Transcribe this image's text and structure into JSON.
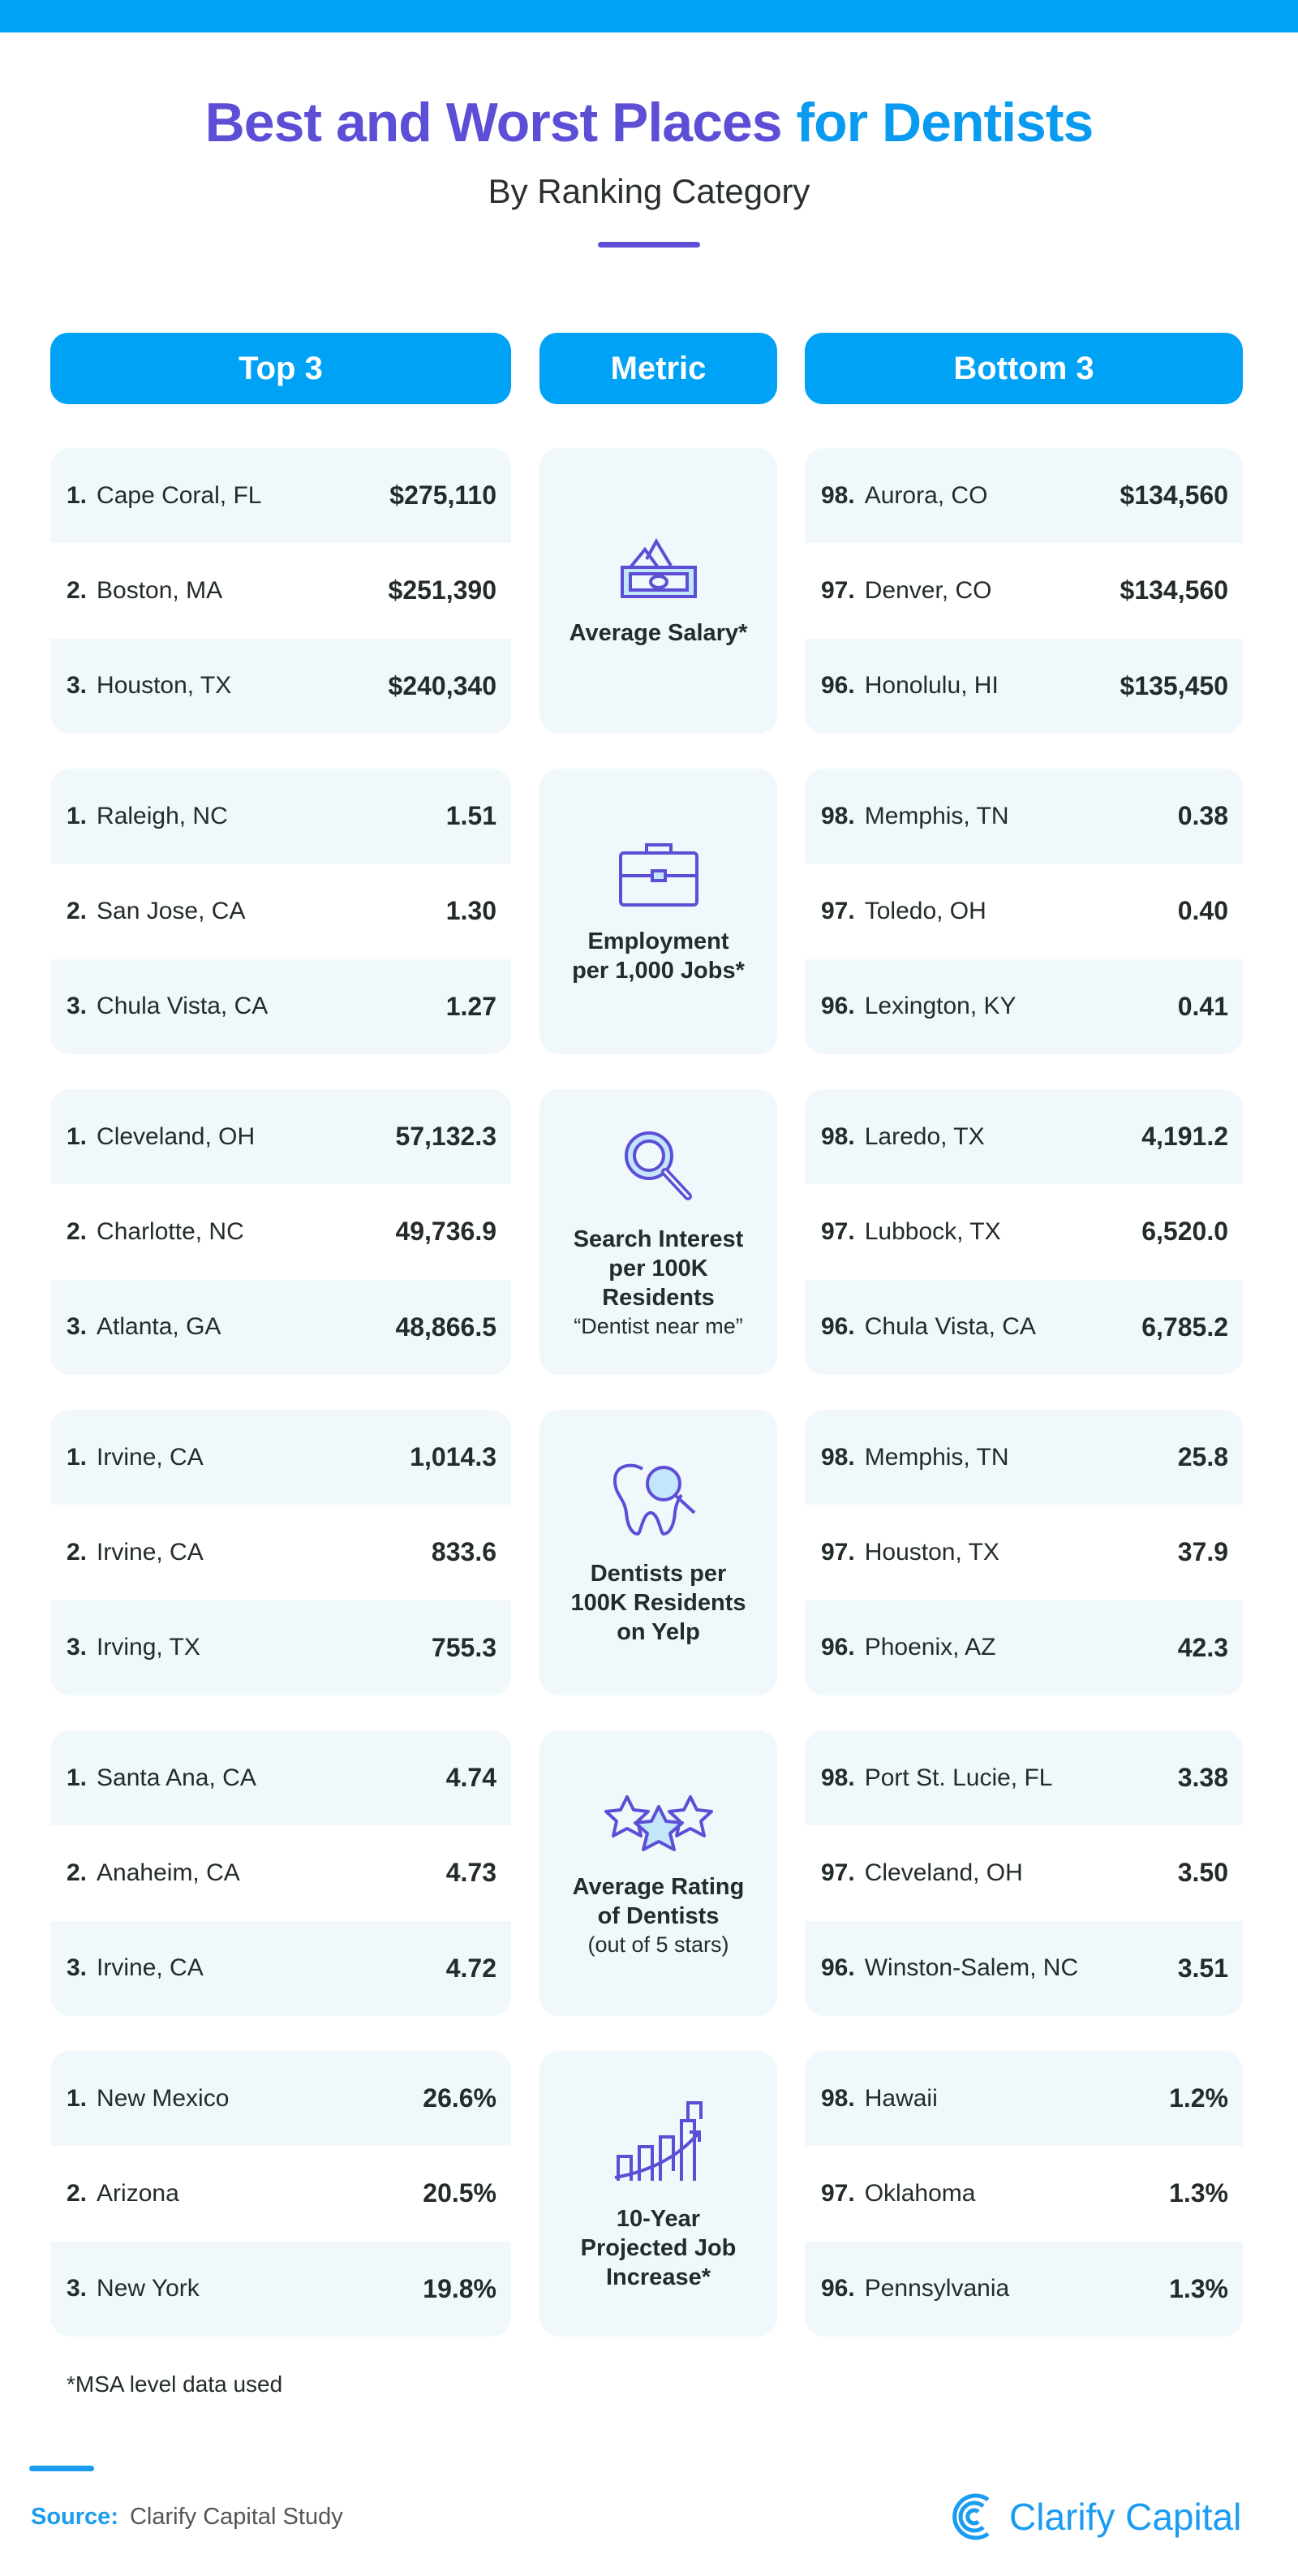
{
  "header": {
    "title_part1": "Best and Worst Places",
    "title_part2": "for Dentists",
    "subtitle": "By Ranking Category"
  },
  "columns": {
    "top": "Top 3",
    "metric": "Metric",
    "bottom": "Bottom 3"
  },
  "colors": {
    "accent_blue": "#00a2f5",
    "accent_purple": "#5c4fd6",
    "row_bg": "#f1f8fc"
  },
  "sections": [
    {
      "metric": "Average Salary*",
      "sub": "",
      "icon": "money-icon",
      "top": [
        {
          "rank": "1.",
          "city": "Cape Coral, FL",
          "value": "$275,110"
        },
        {
          "rank": "2.",
          "city": "Boston, MA",
          "value": "$251,390"
        },
        {
          "rank": "3.",
          "city": "Houston, TX",
          "value": "$240,340"
        }
      ],
      "bottom": [
        {
          "rank": "98.",
          "city": "Aurora, CO",
          "value": "$134,560"
        },
        {
          "rank": "97.",
          "city": "Denver, CO",
          "value": "$134,560"
        },
        {
          "rank": "96.",
          "city": "Honolulu, HI",
          "value": "$135,450"
        }
      ]
    },
    {
      "metric": "Employment\nper 1,000 Jobs*",
      "sub": "",
      "icon": "briefcase-icon",
      "top": [
        {
          "rank": "1.",
          "city": "Raleigh, NC",
          "value": "1.51"
        },
        {
          "rank": "2.",
          "city": "San Jose, CA",
          "value": "1.30"
        },
        {
          "rank": "3.",
          "city": "Chula Vista, CA",
          "value": "1.27"
        }
      ],
      "bottom": [
        {
          "rank": "98.",
          "city": "Memphis, TN",
          "value": "0.38"
        },
        {
          "rank": "97.",
          "city": "Toledo, OH",
          "value": "0.40"
        },
        {
          "rank": "96.",
          "city": "Lexington, KY",
          "value": "0.41"
        }
      ]
    },
    {
      "metric": "Search Interest\nper 100K\nResidents",
      "sub": "“Dentist near me”",
      "icon": "magnifier-icon",
      "top": [
        {
          "rank": "1.",
          "city": "Cleveland, OH",
          "value": "57,132.3"
        },
        {
          "rank": "2.",
          "city": "Charlotte, NC",
          "value": "49,736.9"
        },
        {
          "rank": "3.",
          "city": "Atlanta, GA",
          "value": "48,866.5"
        }
      ],
      "bottom": [
        {
          "rank": "98.",
          "city": "Laredo, TX",
          "value": "4,191.2"
        },
        {
          "rank": "97.",
          "city": "Lubbock, TX",
          "value": "6,520.0"
        },
        {
          "rank": "96.",
          "city": "Chula Vista, CA",
          "value": "6,785.2"
        }
      ]
    },
    {
      "metric": "Dentists per\n100K Residents\non Yelp",
      "sub": "",
      "icon": "tooth-icon",
      "top": [
        {
          "rank": "1.",
          "city": "Irvine, CA",
          "value": "1,014.3"
        },
        {
          "rank": "2.",
          "city": "Irvine, CA",
          "value": "833.6"
        },
        {
          "rank": "3.",
          "city": "Irving, TX",
          "value": "755.3"
        }
      ],
      "bottom": [
        {
          "rank": "98.",
          "city": "Memphis, TN",
          "value": "25.8"
        },
        {
          "rank": "97.",
          "city": "Houston, TX",
          "value": "37.9"
        },
        {
          "rank": "96.",
          "city": "Phoenix, AZ",
          "value": "42.3"
        }
      ]
    },
    {
      "metric": "Average Rating\nof Dentists",
      "sub": "(out of 5 stars)",
      "icon": "stars-icon",
      "top": [
        {
          "rank": "1.",
          "city": "Santa Ana, CA",
          "value": "4.74"
        },
        {
          "rank": "2.",
          "city": "Anaheim, CA",
          "value": "4.73"
        },
        {
          "rank": "3.",
          "city": "Irvine, CA",
          "value": "4.72"
        }
      ],
      "bottom": [
        {
          "rank": "98.",
          "city": "Port St. Lucie, FL",
          "value": "3.38"
        },
        {
          "rank": "97.",
          "city": "Cleveland, OH",
          "value": "3.50"
        },
        {
          "rank": "96.",
          "city": "Winston-Salem, NC",
          "value": "3.51"
        }
      ]
    },
    {
      "metric": "10-Year\nProjected Job\nIncrease*",
      "sub": "",
      "icon": "growth-chart-icon",
      "top": [
        {
          "rank": "1.",
          "city": "New Mexico",
          "value": "26.6%"
        },
        {
          "rank": "2.",
          "city": "Arizona",
          "value": "20.5%"
        },
        {
          "rank": "3.",
          "city": "New York",
          "value": "19.8%"
        }
      ],
      "bottom": [
        {
          "rank": "98.",
          "city": "Hawaii",
          "value": "1.2%"
        },
        {
          "rank": "97.",
          "city": "Oklahoma",
          "value": "1.3%"
        },
        {
          "rank": "96.",
          "city": "Pennsylvania",
          "value": "1.3%"
        }
      ]
    }
  ],
  "footnote": "*MSA level data used",
  "source": {
    "label": "Source:",
    "text": "Clarify Capital Study"
  },
  "logo": "Clarify Capital"
}
